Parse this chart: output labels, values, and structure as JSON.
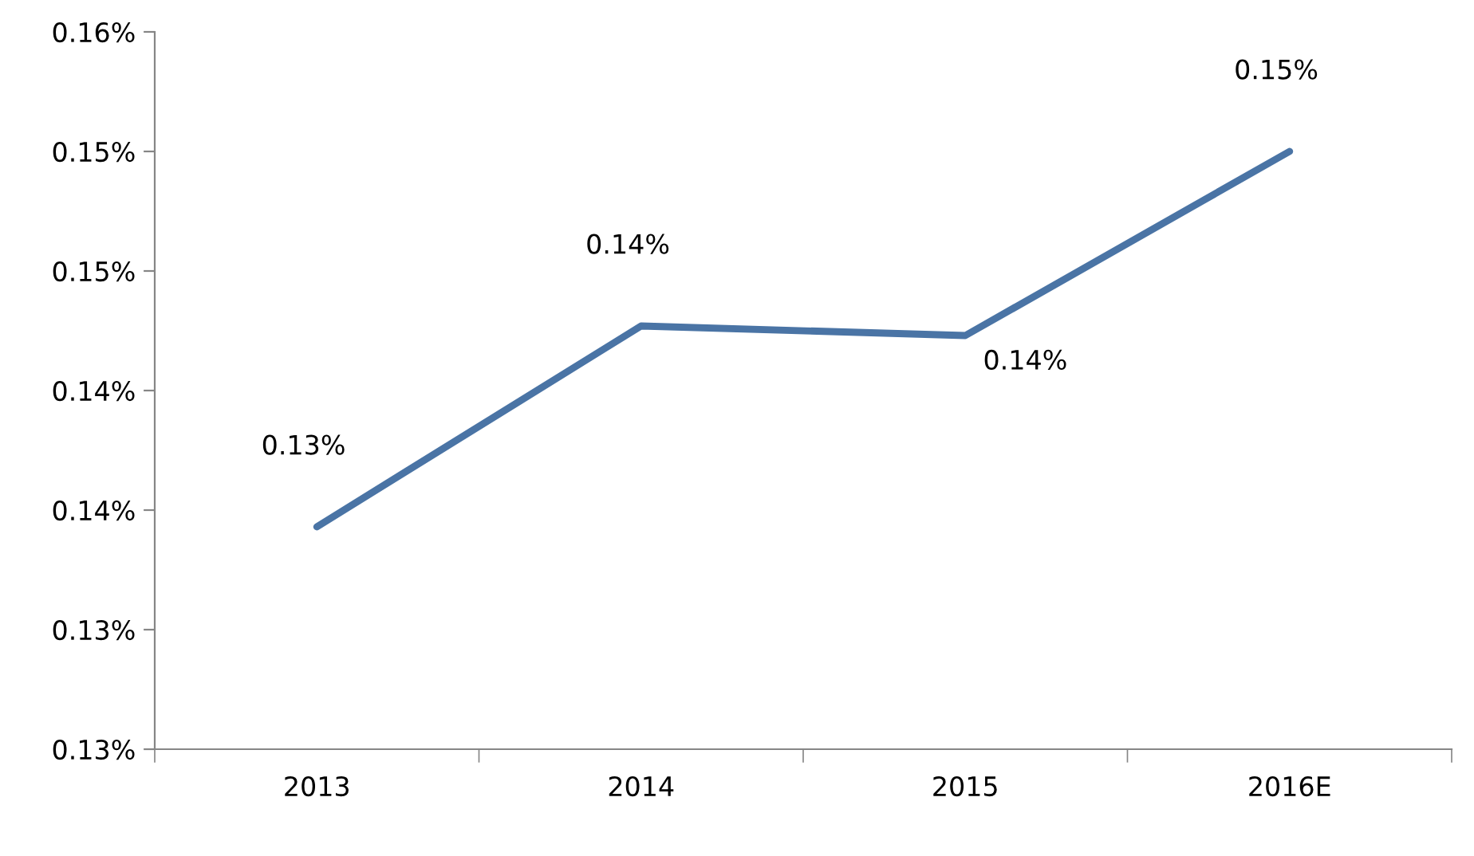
{
  "chart_data": {
    "type": "line",
    "categories": [
      "2013",
      "2014",
      "2015",
      "2016E"
    ],
    "series": [
      {
        "color": "#4a74a5",
        "values": [
          0.1343,
          0.1427,
          0.1423,
          0.15
        ],
        "value_labels": [
          "0.13%",
          "0.14%",
          "0.14%",
          "0.15%"
        ]
      }
    ],
    "ylim": [
      0.125,
      0.155
    ],
    "yticks": [
      {
        "value": 0.125,
        "label": "0.13%"
      },
      {
        "value": 0.13,
        "label": "0.13%"
      },
      {
        "value": 0.135,
        "label": "0.14%"
      },
      {
        "value": 0.14,
        "label": "0.14%"
      },
      {
        "value": 0.145,
        "label": "0.15%"
      },
      {
        "value": 0.15,
        "label": "0.15%"
      },
      {
        "value": 0.155,
        "label": "0.16%"
      }
    ],
    "grid": false,
    "legend": false,
    "marker": "none",
    "line_style": "solid"
  }
}
